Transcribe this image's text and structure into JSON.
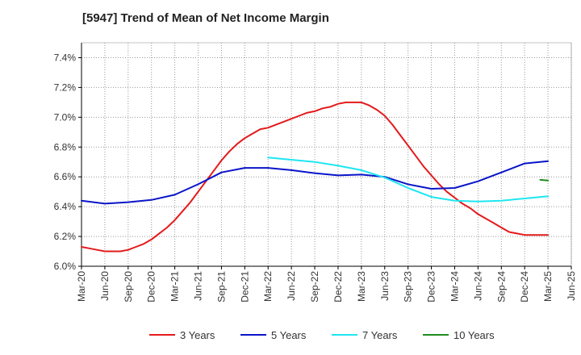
{
  "title": "[5947]  Trend of Mean of Net Income Margin",
  "chart_data": {
    "type": "line",
    "title": "[5947]  Trend of Mean of Net Income Margin",
    "xlabel": "",
    "ylabel": "",
    "x_ticks": [
      "Mar-20",
      "Jun-20",
      "Sep-20",
      "Dec-20",
      "Mar-21",
      "Jun-21",
      "Sep-21",
      "Dec-21",
      "Mar-22",
      "Jun-22",
      "Sep-22",
      "Dec-22",
      "Mar-23",
      "Jun-23",
      "Sep-23",
      "Dec-23",
      "Mar-24",
      "Jun-24",
      "Sep-24",
      "Dec-24",
      "Mar-25",
      "Jun-25"
    ],
    "y_ticks": [
      "6.0%",
      "6.2%",
      "6.4%",
      "6.6%",
      "6.8%",
      "7.0%",
      "7.2%",
      "7.4%"
    ],
    "ylim": [
      6.0,
      7.5
    ],
    "grid": true,
    "legend_position": "bottom",
    "colors": {
      "axis": "#000000",
      "grid": "#999999",
      "frame": "#888888"
    },
    "series": [
      {
        "name": "3 Years",
        "color": "#e31a1c",
        "x": [
          "Mar-20",
          "Apr-20",
          "May-20",
          "Jun-20",
          "Jul-20",
          "Aug-20",
          "Sep-20",
          "Oct-20",
          "Nov-20",
          "Dec-20",
          "Jan-21",
          "Feb-21",
          "Mar-21",
          "Apr-21",
          "May-21",
          "Jun-21",
          "Jul-21",
          "Aug-21",
          "Sep-21",
          "Oct-21",
          "Nov-21",
          "Dec-21",
          "Jan-22",
          "Feb-22",
          "Mar-22",
          "Apr-22",
          "May-22",
          "Jun-22",
          "Jul-22",
          "Aug-22",
          "Sep-22",
          "Oct-22",
          "Nov-22",
          "Dec-22",
          "Jan-23",
          "Feb-23",
          "Mar-23",
          "Apr-23",
          "May-23",
          "Jun-23",
          "Jul-23",
          "Aug-23",
          "Sep-23",
          "Oct-23",
          "Nov-23",
          "Dec-23",
          "Jan-24",
          "Feb-24",
          "Mar-24",
          "Apr-24",
          "May-24",
          "Jun-24",
          "Jul-24",
          "Aug-24",
          "Sep-24",
          "Oct-24",
          "Nov-24",
          "Dec-24",
          "Jan-25",
          "Feb-25",
          "Mar-25"
        ],
        "values": [
          6.13,
          6.12,
          6.11,
          6.1,
          6.1,
          6.1,
          6.11,
          6.13,
          6.15,
          6.18,
          6.22,
          6.26,
          6.31,
          6.37,
          6.43,
          6.5,
          6.57,
          6.64,
          6.71,
          6.77,
          6.82,
          6.86,
          6.89,
          6.92,
          6.93,
          6.95,
          6.97,
          6.99,
          7.01,
          7.03,
          7.04,
          7.06,
          7.07,
          7.09,
          7.1,
          7.1,
          7.1,
          7.08,
          7.05,
          7.01,
          6.95,
          6.88,
          6.81,
          6.74,
          6.67,
          6.61,
          6.55,
          6.5,
          6.46,
          6.42,
          6.39,
          6.35,
          6.32,
          6.29,
          6.26,
          6.23,
          6.22,
          6.21,
          6.21,
          6.21,
          6.21
        ]
      },
      {
        "name": "5 Years",
        "color": "#0a14c8",
        "x": [
          "Mar-20",
          "Jun-20",
          "Sep-20",
          "Dec-20",
          "Mar-21",
          "Jun-21",
          "Sep-21",
          "Dec-21",
          "Mar-22",
          "Jun-22",
          "Sep-22",
          "Dec-22",
          "Mar-23",
          "Jun-23",
          "Sep-23",
          "Dec-23",
          "Mar-24",
          "Jun-24",
          "Sep-24",
          "Dec-24",
          "Mar-25"
        ],
        "values": [
          6.44,
          6.42,
          6.43,
          6.445,
          6.48,
          6.55,
          6.63,
          6.66,
          6.66,
          6.645,
          6.625,
          6.61,
          6.615,
          6.6,
          6.55,
          6.52,
          6.525,
          6.57,
          6.63,
          6.69,
          6.705
        ]
      },
      {
        "name": "7 Years",
        "color": "#1ee6f0",
        "x": [
          "Mar-22",
          "Jun-22",
          "Sep-22",
          "Dec-22",
          "Mar-23",
          "Jun-23",
          "Sep-23",
          "Dec-23",
          "Mar-24",
          "Jun-24",
          "Sep-24",
          "Dec-24",
          "Mar-25"
        ],
        "values": [
          6.73,
          6.715,
          6.7,
          6.675,
          6.645,
          6.595,
          6.525,
          6.465,
          6.44,
          6.435,
          6.44,
          6.455,
          6.47
        ]
      },
      {
        "name": "10 Years",
        "color": "#1e8c1e",
        "x": [
          "Feb-25",
          "Mar-25"
        ],
        "values": [
          6.58,
          6.575
        ]
      }
    ]
  }
}
